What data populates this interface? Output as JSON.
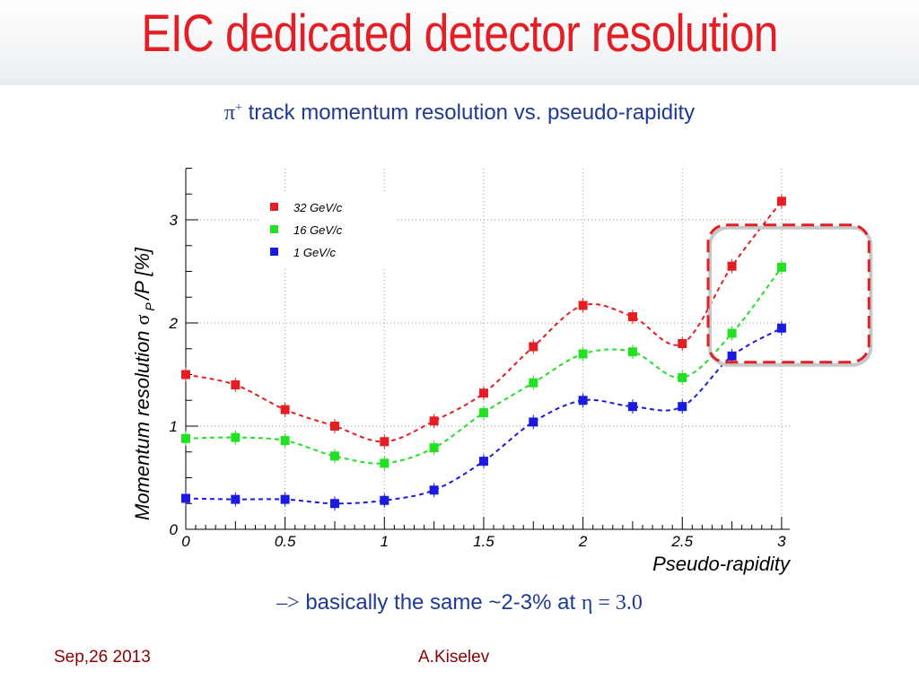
{
  "slide": {
    "title": "EIC dedicated detector resolution",
    "subtitle_symbol": "π",
    "subtitle_superscript": "+",
    "subtitle_text": "track momentum resolution vs. pseudo-rapidity",
    "conclusion_arrow": "–>",
    "conclusion_text": "basically the same ~2-3% at",
    "conclusion_math": "η = 3.0",
    "footer_date": "Sep,26 2013",
    "footer_author": "A.Kiselev"
  },
  "chart_data": {
    "type": "scatter",
    "xlabel": "Pseudo-rapidity",
    "ylabel": "Momentum resolution",
    "ylabel_math": "σ",
    "ylabel_sub": "P",
    "ylabel_tail": "/P  [%]",
    "xlim": [
      0,
      3.05
    ],
    "ylim": [
      0,
      3.5
    ],
    "x_ticks": [
      0,
      0.5,
      1,
      1.5,
      2,
      2.5,
      3
    ],
    "x_tick_labels": [
      "0",
      "0.5",
      "1",
      "1.5",
      "2",
      "2.5",
      "3"
    ],
    "y_ticks": [
      0,
      1,
      2,
      3
    ],
    "y_tick_labels": [
      "0",
      "1",
      "2",
      "3"
    ],
    "grid": true,
    "legend_position": "top-left",
    "highlight_box": {
      "x_range": [
        2.63,
        3.44
      ],
      "y_range": [
        1.62,
        2.95
      ],
      "color": "#e31e24"
    },
    "x": [
      0,
      0.25,
      0.5,
      0.75,
      1,
      1.25,
      1.5,
      1.75,
      2,
      2.25,
      2.5,
      2.75,
      3
    ],
    "series": [
      {
        "name": "32 GeV/c",
        "color": "#e31e24",
        "values": [
          1.5,
          1.4,
          1.16,
          1.0,
          0.85,
          1.05,
          1.32,
          1.77,
          2.17,
          2.06,
          1.8,
          2.55,
          3.18
        ]
      },
      {
        "name": "16 GeV/c",
        "color": "#22e022",
        "values": [
          0.88,
          0.89,
          0.86,
          0.71,
          0.64,
          0.79,
          1.13,
          1.42,
          1.7,
          1.72,
          1.47,
          1.9,
          2.54
        ]
      },
      {
        "name": "1  GeV/c",
        "color": "#1a1ae0",
        "values": [
          0.3,
          0.29,
          0.29,
          0.25,
          0.28,
          0.38,
          0.66,
          1.04,
          1.25,
          1.19,
          1.19,
          1.68,
          1.95
        ]
      }
    ]
  }
}
